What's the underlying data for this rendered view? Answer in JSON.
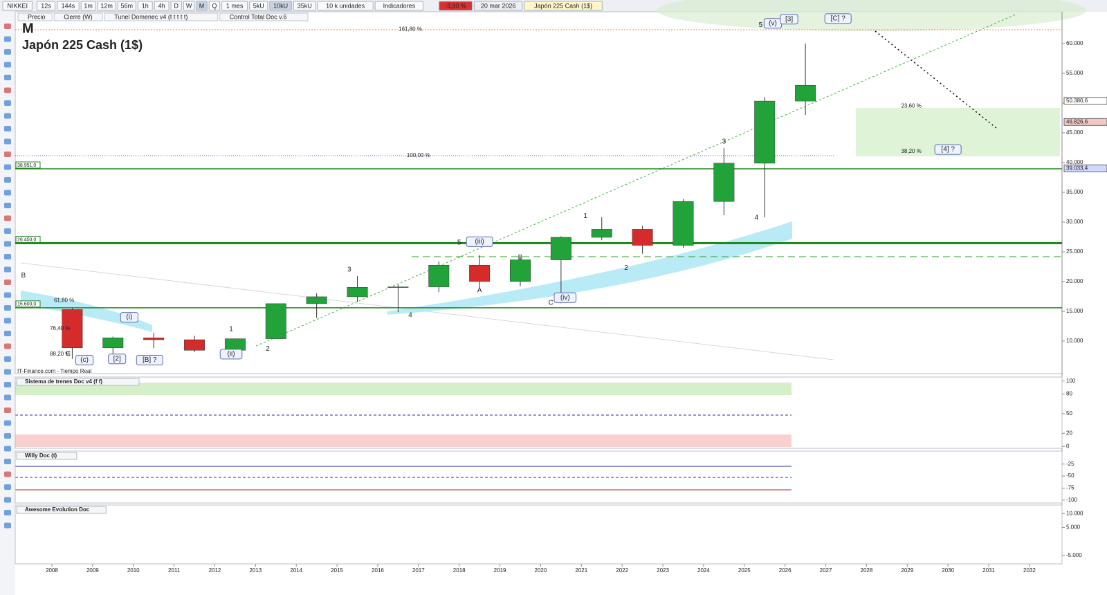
{
  "toolbar": {
    "symbol": "NIKKEI",
    "intervals": [
      "12s",
      "144s",
      "1m",
      "12m",
      "56m",
      "1h",
      "4h",
      "D",
      "W",
      "M",
      "Q"
    ],
    "period": "1 mes",
    "units": [
      "5kU",
      "10kU",
      "35kU"
    ],
    "units_label": "10 k unidades",
    "indicators": "Indicadores",
    "change": "-3,90 %",
    "date": "20 mar 2026",
    "instrument": "Japón 225 Cash (1$)"
  },
  "legend": [
    "Precio",
    "Cierre (W)",
    "Tunel Domenec v4 (t t t t t)",
    "Control Total Doc v.6"
  ],
  "footer": "IT-Finance.com - Tiempo Real",
  "chart_data": [
    {
      "type": "candlestick",
      "timeframe": "M",
      "title": "Japón 225 Cash (1$)",
      "x": [
        2008,
        2009,
        2010,
        2011,
        2012,
        2013,
        2014,
        2015,
        2016,
        2017,
        2018,
        2019,
        2020,
        2021,
        2022,
        2023,
        2024,
        2025,
        2026
      ],
      "open": [
        15300,
        8860,
        10546,
        10229,
        8455,
        10395,
        16291,
        17450,
        19034,
        19114,
        22765,
        20015,
        23657,
        27444,
        28792,
        26095,
        33464,
        39895,
        50340
      ],
      "high": [
        15600,
        10767,
        11408,
        10891,
        10395,
        16320,
        18030,
        20952,
        19495,
        23382,
        24448,
        24091,
        27602,
        30795,
        29388,
        33853,
        42426,
        51000,
        60000
      ],
      "low": [
        7000,
        7054,
        8796,
        8135,
        8238,
        10398,
        13885,
        16593,
        14864,
        18224,
        18949,
        19241,
        16358,
        26954,
        24681,
        25662,
        31156,
        30792,
        48000
      ],
      "close": [
        8860,
        10546,
        10229,
        8455,
        10395,
        16291,
        17450,
        19034,
        19114,
        22765,
        20015,
        23657,
        27444,
        28792,
        26095,
        33464,
        39895,
        50340,
        53000
      ],
      "up_color": "#22a33a",
      "down_color": "#d42b2b",
      "xlim": [
        2007.1,
        2032.8
      ],
      "xticks": [
        2008,
        2009,
        2010,
        2011,
        2012,
        2013,
        2014,
        2015,
        2016,
        2017,
        2018,
        2019,
        2020,
        2021,
        2022,
        2023,
        2024,
        2025,
        2026,
        2027,
        2028,
        2029,
        2030,
        2031,
        2032
      ],
      "ylim": [
        4535,
        65350
      ],
      "yticks": [
        {
          "value": 10000,
          "label": "10.000"
        },
        {
          "value": 15000,
          "label": "15.000"
        },
        {
          "value": 20000,
          "label": "20.000"
        },
        {
          "value": 25000,
          "label": "25.000"
        },
        {
          "value": 30000,
          "label": "30.000"
        },
        {
          "value": 35000,
          "label": "35.000"
        },
        {
          "value": 40000,
          "label": "40.000"
        },
        {
          "value": 45000,
          "label": "45.000"
        },
        {
          "value": 50000,
          "label": "50.000"
        },
        {
          "value": 55000,
          "label": "55.000"
        },
        {
          "value": 60000,
          "label": "60.000"
        }
      ],
      "levels": [
        {
          "value": 38951,
          "label": "38.951,0"
        },
        {
          "value": 26450,
          "label": "26.450,0"
        },
        {
          "value": 15600,
          "label": "15.600,0"
        }
      ],
      "level_color": "#1c8a1c",
      "price_tags": [
        {
          "value": 50380.6,
          "label": "50.380,6",
          "color": "#ffffff"
        },
        {
          "value": 46826.6,
          "label": "46.826,6",
          "color": "#f4c7c7"
        },
        {
          "value": 39033.4,
          "label": "39.033,4",
          "color": "#cfd8ff"
        }
      ],
      "wave_color": "#2233bb",
      "waves": [
        {
          "text": "B",
          "x": 2007.3,
          "y": 21000
        },
        {
          "text": "C",
          "x": 2008.4,
          "y": 7800
        },
        {
          "text": "(c)",
          "x": 2008.8,
          "y": 6800
        },
        {
          "text": "[2]",
          "x": 2009.6,
          "y": 7000
        },
        {
          "text": "(i)",
          "x": 2009.9,
          "y": 14000
        },
        {
          "text": "[B] ?",
          "x": 2010.4,
          "y": 6800
        },
        {
          "text": "1",
          "x": 2012.4,
          "y": 12000
        },
        {
          "text": "(ii)",
          "x": 2012.4,
          "y": 7800
        },
        {
          "text": "2",
          "x": 2013.3,
          "y": 8700
        },
        {
          "text": "3",
          "x": 2015.3,
          "y": 22000
        },
        {
          "text": "4",
          "x": 2016.8,
          "y": 14300
        },
        {
          "text": "5",
          "x": 2018.0,
          "y": 26500
        },
        {
          "text": "(iii)",
          "x": 2018.5,
          "y": 26700
        },
        {
          "text": "A",
          "x": 2018.5,
          "y": 18500
        },
        {
          "text": "B",
          "x": 2019.5,
          "y": 24000
        },
        {
          "text": "C",
          "x": 2020.25,
          "y": 16400
        },
        {
          "text": "(iv)",
          "x": 2020.6,
          "y": 17300
        },
        {
          "text": "1",
          "x": 2021.1,
          "y": 31000
        },
        {
          "text": "2",
          "x": 2022.1,
          "y": 22300
        },
        {
          "text": "3",
          "x": 2024.5,
          "y": 43500
        },
        {
          "text": "4",
          "x": 2025.3,
          "y": 30700
        },
        {
          "text": "5",
          "x": 2025.4,
          "y": 63100
        },
        {
          "text": "(v)",
          "x": 2025.7,
          "y": 63400
        },
        {
          "text": "[3]",
          "x": 2026.1,
          "y": 64100
        },
        {
          "text": "[C] ?",
          "x": 2027.3,
          "y": 64200
        },
        {
          "text": "[4] ?",
          "x": 2030.0,
          "y": 42200
        }
      ],
      "fib_color": "#2e8b2e",
      "fibs": [
        {
          "text": "161,80 %",
          "x": 2016.8,
          "y": 62400
        },
        {
          "text": "100,00 %",
          "x": 2017.0,
          "y": 41200
        },
        {
          "text": "61,80 %",
          "x": 2008.3,
          "y": 16800
        },
        {
          "text": "76,40 %",
          "x": 2008.2,
          "y": 12100
        },
        {
          "text": "88,20 %",
          "x": 2008.2,
          "y": 7800
        },
        {
          "text": "23,60 %",
          "x": 2029.1,
          "y": 49500
        },
        {
          "text": "38,20 %",
          "x": 2029.1,
          "y": 41900
        }
      ]
    },
    {
      "type": "indicator",
      "title": "Sistema de trenes Doc v4 (f f)",
      "ylim": [
        -3,
        106
      ],
      "yticks": [
        0,
        20,
        50,
        80,
        100
      ]
    },
    {
      "type": "indicator",
      "title": "Willy Doc (t)",
      "ylim": [
        -106,
        2
      ],
      "yticks": [
        -25,
        -50,
        -75,
        -100
      ]
    },
    {
      "type": "indicator",
      "title": "Awesome Evolution Doc",
      "ylim": [
        -8000,
        13000
      ],
      "yticks": [
        {
          "value": -5000,
          "label": "-5.000"
        },
        {
          "value": 5000,
          "label": "5.000"
        },
        {
          "value": 10000,
          "label": "10.000"
        }
      ]
    }
  ]
}
